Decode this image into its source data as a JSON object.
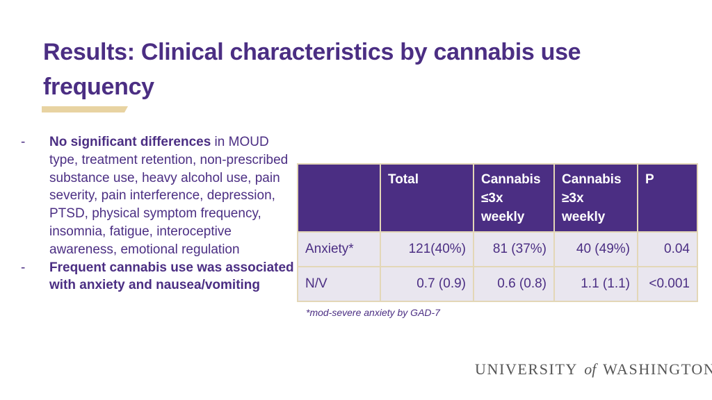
{
  "slide": {
    "title": "Results: Clinical characteristics by cannabis use frequency"
  },
  "bullets": [
    {
      "dash": "-",
      "bold": "No significant differences",
      "text": " in MOUD type, treatment retention, non-prescribed substance use, heavy alcohol use, pain severity, pain interference, depression, PTSD, physical symptom frequency, insomnia, fatigue, interoceptive awareness, emotional regulation"
    },
    {
      "dash": "-",
      "bold": "Frequent cannabis use was associated with anxiety and nausea/vomiting"
    }
  ],
  "table": {
    "headers": [
      "",
      "Total",
      "Cannabis ≤3x weekly",
      "Cannabis ≥3x weekly",
      "P"
    ],
    "rows": [
      [
        "Anxiety*",
        "121(40%)",
        "81 (37%)",
        "40 (49%)",
        "0.04"
      ],
      [
        "N/V",
        "0.7 (0.9)",
        "0.6 (0.8)",
        "1.1 (1.1)",
        "<0.001"
      ]
    ],
    "footnote": "*mod-severe anxiety by GAD-7"
  },
  "logo": {
    "part1": "UNIVERSITY",
    "part2": "of",
    "part3": "WASHINGTON"
  },
  "colors": {
    "primary_purple": "#4b2e83",
    "gold_accent": "#e8d3a2",
    "row_background": "#e9e6ef",
    "table_border": "#e3d7b7"
  }
}
